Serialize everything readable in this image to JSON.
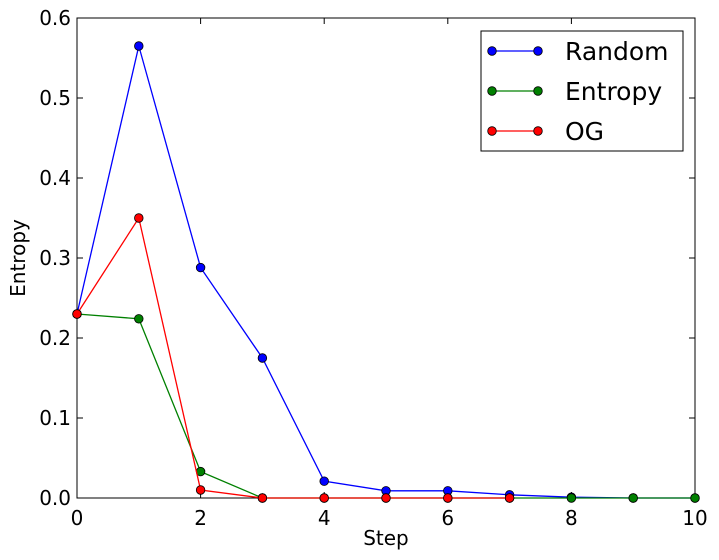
{
  "chart_data": {
    "type": "line",
    "title": "",
    "xlabel": "Step",
    "ylabel": "Entropy",
    "xlim": [
      0,
      10
    ],
    "ylim": [
      0,
      0.6
    ],
    "xticks": [
      0,
      2,
      4,
      6,
      8,
      10
    ],
    "yticks": [
      0.0,
      0.1,
      0.2,
      0.3,
      0.4,
      0.5,
      0.6
    ],
    "xtick_labels": [
      "0",
      "2",
      "4",
      "6",
      "8",
      "10"
    ],
    "ytick_labels": [
      "0.0",
      "0.1",
      "0.2",
      "0.3",
      "0.4",
      "0.5",
      "0.6"
    ],
    "grid": false,
    "legend_position": "top-right",
    "series": [
      {
        "name": "Random",
        "color": "#0000ff",
        "x": [
          0,
          1,
          2,
          3,
          4,
          5,
          6,
          7,
          8,
          9,
          10
        ],
        "values": [
          0.23,
          0.565,
          0.288,
          0.175,
          0.021,
          0.009,
          0.009,
          0.004,
          0.001,
          0.0,
          0.0
        ]
      },
      {
        "name": "Entropy",
        "color": "#008000",
        "x": [
          0,
          1,
          2,
          3,
          4,
          5,
          6,
          7,
          8,
          9,
          10
        ],
        "values": [
          0.23,
          0.224,
          0.033,
          0.0,
          0.0,
          0.0,
          0.0,
          0.0,
          0.0,
          0.0,
          0.0
        ]
      },
      {
        "name": "OG",
        "color": "#ff0000",
        "x": [
          0,
          1,
          2,
          3,
          4,
          5,
          6,
          7
        ],
        "values": [
          0.23,
          0.35,
          0.01,
          0.0,
          0.0,
          0.0,
          0.0,
          0.0
        ]
      }
    ]
  }
}
